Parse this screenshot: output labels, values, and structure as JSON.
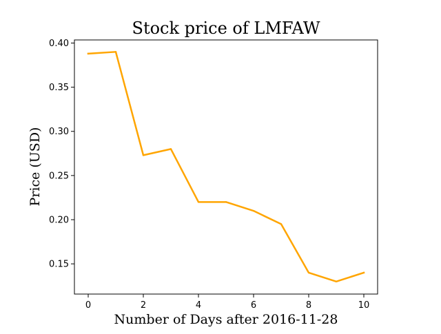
{
  "chart_data": {
    "type": "line",
    "title": "Stock price of LMFAW",
    "xlabel": "Number of Days after 2016-11-28",
    "ylabel": "Price (USD)",
    "xlim": [
      -0.5,
      10.5
    ],
    "ylim": [
      0.1158,
      0.4035
    ],
    "x_ticks": [
      0,
      2,
      4,
      6,
      8,
      10
    ],
    "y_ticks": [
      0.15,
      0.2,
      0.25,
      0.3,
      0.35,
      0.4
    ],
    "x_tick_labels": [
      "0",
      "2",
      "4",
      "6",
      "8",
      "10"
    ],
    "y_tick_labels": [
      "0.15",
      "0.20",
      "0.25",
      "0.30",
      "0.35",
      "0.40"
    ],
    "grid": false,
    "legend": "none",
    "series": [
      {
        "color": "#FFA500",
        "x": [
          0,
          1,
          2,
          3,
          4,
          5,
          6,
          7,
          8,
          9,
          10
        ],
        "y": [
          0.388,
          0.39,
          0.273,
          0.28,
          0.22,
          0.22,
          0.21,
          0.195,
          0.14,
          0.13,
          0.14
        ]
      }
    ]
  }
}
